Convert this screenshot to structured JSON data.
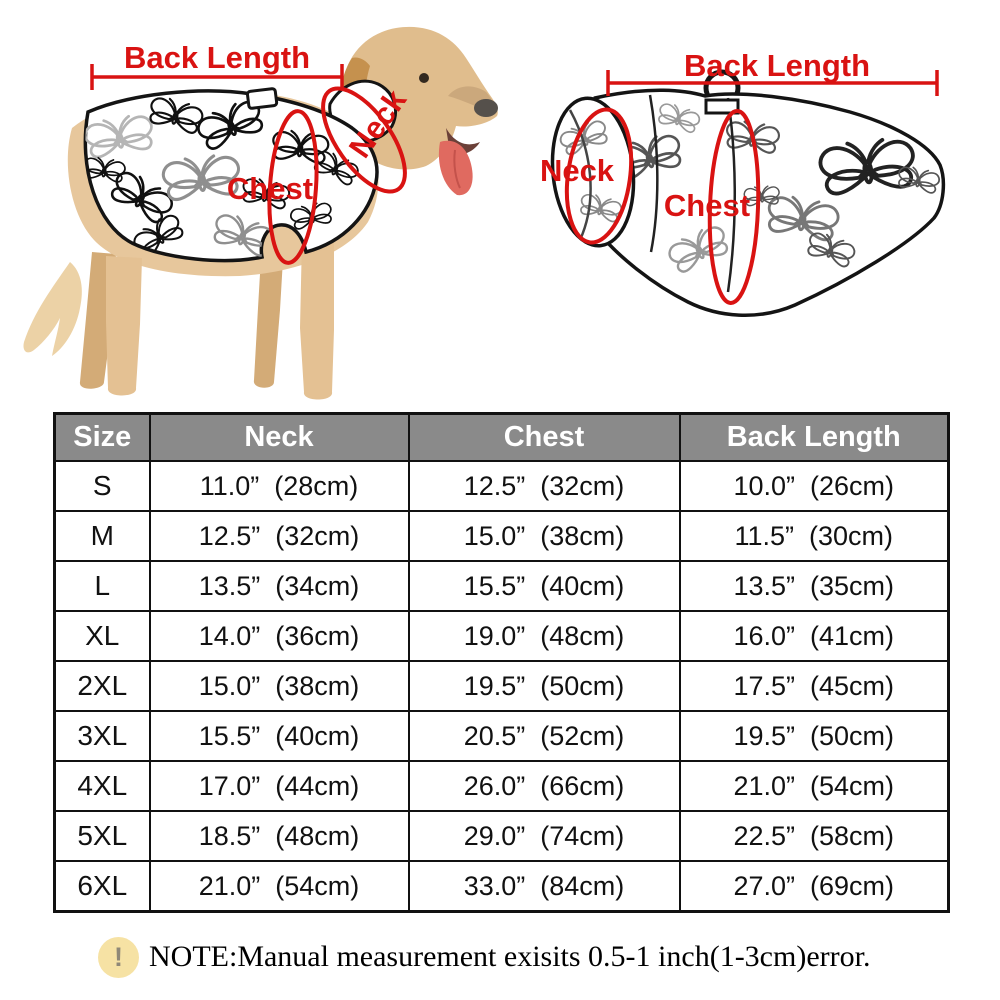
{
  "diagram": {
    "annotation_color": "#d91312",
    "left": {
      "back_length_label": "Back Length",
      "neck_label": "Neck",
      "chest_label": "Chest"
    },
    "right": {
      "back_length_label": "Back Length",
      "neck_label": "Neck",
      "chest_label": "Chest"
    }
  },
  "size_table": {
    "header_bg": "#8a8a8a",
    "headers": [
      "Size",
      "Neck",
      "Chest",
      "Back Length"
    ],
    "rows": [
      {
        "size": "S",
        "cells": [
          [
            "11.0”",
            "(28cm)"
          ],
          [
            "12.5”",
            "(32cm)"
          ],
          [
            "10.0”",
            "(26cm)"
          ]
        ]
      },
      {
        "size": "M",
        "cells": [
          [
            "12.5”",
            "(32cm)"
          ],
          [
            "15.0”",
            "(38cm)"
          ],
          [
            "11.5”",
            "(30cm)"
          ]
        ]
      },
      {
        "size": "L",
        "cells": [
          [
            "13.5”",
            "(34cm)"
          ],
          [
            "15.5”",
            "(40cm)"
          ],
          [
            "13.5”",
            "(35cm)"
          ]
        ]
      },
      {
        "size": "XL",
        "cells": [
          [
            "14.0”",
            "(36cm)"
          ],
          [
            "19.0”",
            "(48cm)"
          ],
          [
            "16.0”",
            "(41cm)"
          ]
        ]
      },
      {
        "size": "2XL",
        "cells": [
          [
            "15.0”",
            "(38cm)"
          ],
          [
            "19.5”",
            "(50cm)"
          ],
          [
            "17.5”",
            "(45cm)"
          ]
        ]
      },
      {
        "size": "3XL",
        "cells": [
          [
            "15.5”",
            "(40cm)"
          ],
          [
            "20.5”",
            "(52cm)"
          ],
          [
            "19.5”",
            "(50cm)"
          ]
        ]
      },
      {
        "size": "4XL",
        "cells": [
          [
            "17.0”",
            "(44cm)"
          ],
          [
            "26.0”",
            "(66cm)"
          ],
          [
            "21.0”",
            "(54cm)"
          ]
        ]
      },
      {
        "size": "5XL",
        "cells": [
          [
            "18.5”",
            "(48cm)"
          ],
          [
            "29.0”",
            "(74cm)"
          ],
          [
            "22.5”",
            "(58cm)"
          ]
        ]
      },
      {
        "size": "6XL",
        "cells": [
          [
            "21.0”",
            "(54cm)"
          ],
          [
            "33.0”",
            "(84cm)"
          ],
          [
            "27.0”",
            "(69cm)"
          ]
        ]
      }
    ]
  },
  "note": {
    "icon": "exclamation-icon",
    "icon_glyph": "!",
    "icon_bg": "#f6e2a4",
    "text": "NOTE:Manual measurement exisits 0.5-1 inch(1-3cm)error."
  }
}
